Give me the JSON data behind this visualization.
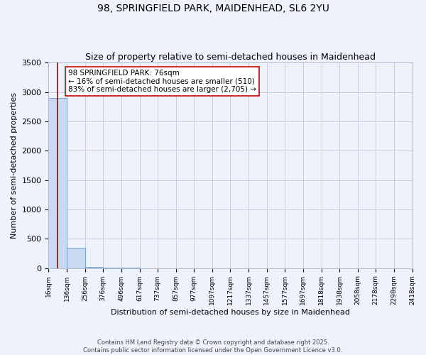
{
  "title": "98, SPRINGFIELD PARK, MAIDENHEAD, SL6 2YU",
  "subtitle": "Size of property relative to semi-detached houses in Maidenhead",
  "xlabel": "Distribution of semi-detached houses by size in Maidenhead",
  "ylabel": "Number of semi-detached properties",
  "annotation_text": "98 SPRINGFIELD PARK: 76sqm\n← 16% of semi-detached houses are smaller (510)\n83% of semi-detached houses are larger (2,705) →",
  "bin_edges": [
    16,
    136,
    256,
    376,
    496,
    617,
    737,
    857,
    977,
    1097,
    1217,
    1337,
    1457,
    1577,
    1697,
    1818,
    1938,
    2058,
    2178,
    2298,
    2418
  ],
  "bin_labels": [
    "16sqm",
    "136sqm",
    "256sqm",
    "376sqm",
    "496sqm",
    "617sqm",
    "737sqm",
    "857sqm",
    "977sqm",
    "1097sqm",
    "1217sqm",
    "1337sqm",
    "1457sqm",
    "1577sqm",
    "1697sqm",
    "1818sqm",
    "1938sqm",
    "2058sqm",
    "2178sqm",
    "2298sqm",
    "2418sqm"
  ],
  "bar_heights": [
    2900,
    340,
    25,
    5,
    2,
    1,
    1,
    0,
    0,
    0,
    0,
    0,
    0,
    0,
    0,
    0,
    0,
    0,
    0,
    0
  ],
  "bar_color": "#c8d9f0",
  "bar_edge_color": "#6699cc",
  "vline_color": "#aa0000",
  "vline_x": 76,
  "ylim": [
    0,
    3500
  ],
  "yticks": [
    0,
    500,
    1000,
    1500,
    2000,
    2500,
    3000,
    3500
  ],
  "background_color": "#eef2fb",
  "grid_color": "#c0c8e0",
  "footer_text": "Contains HM Land Registry data © Crown copyright and database right 2025.\nContains public sector information licensed under the Open Government Licence v3.0.",
  "title_fontsize": 10,
  "subtitle_fontsize": 9,
  "ylabel_fontsize": 8,
  "xlabel_fontsize": 8,
  "annotation_fontsize": 7.5,
  "annotation_box_color": "#ffffff",
  "annotation_box_edge": "#cc0000"
}
